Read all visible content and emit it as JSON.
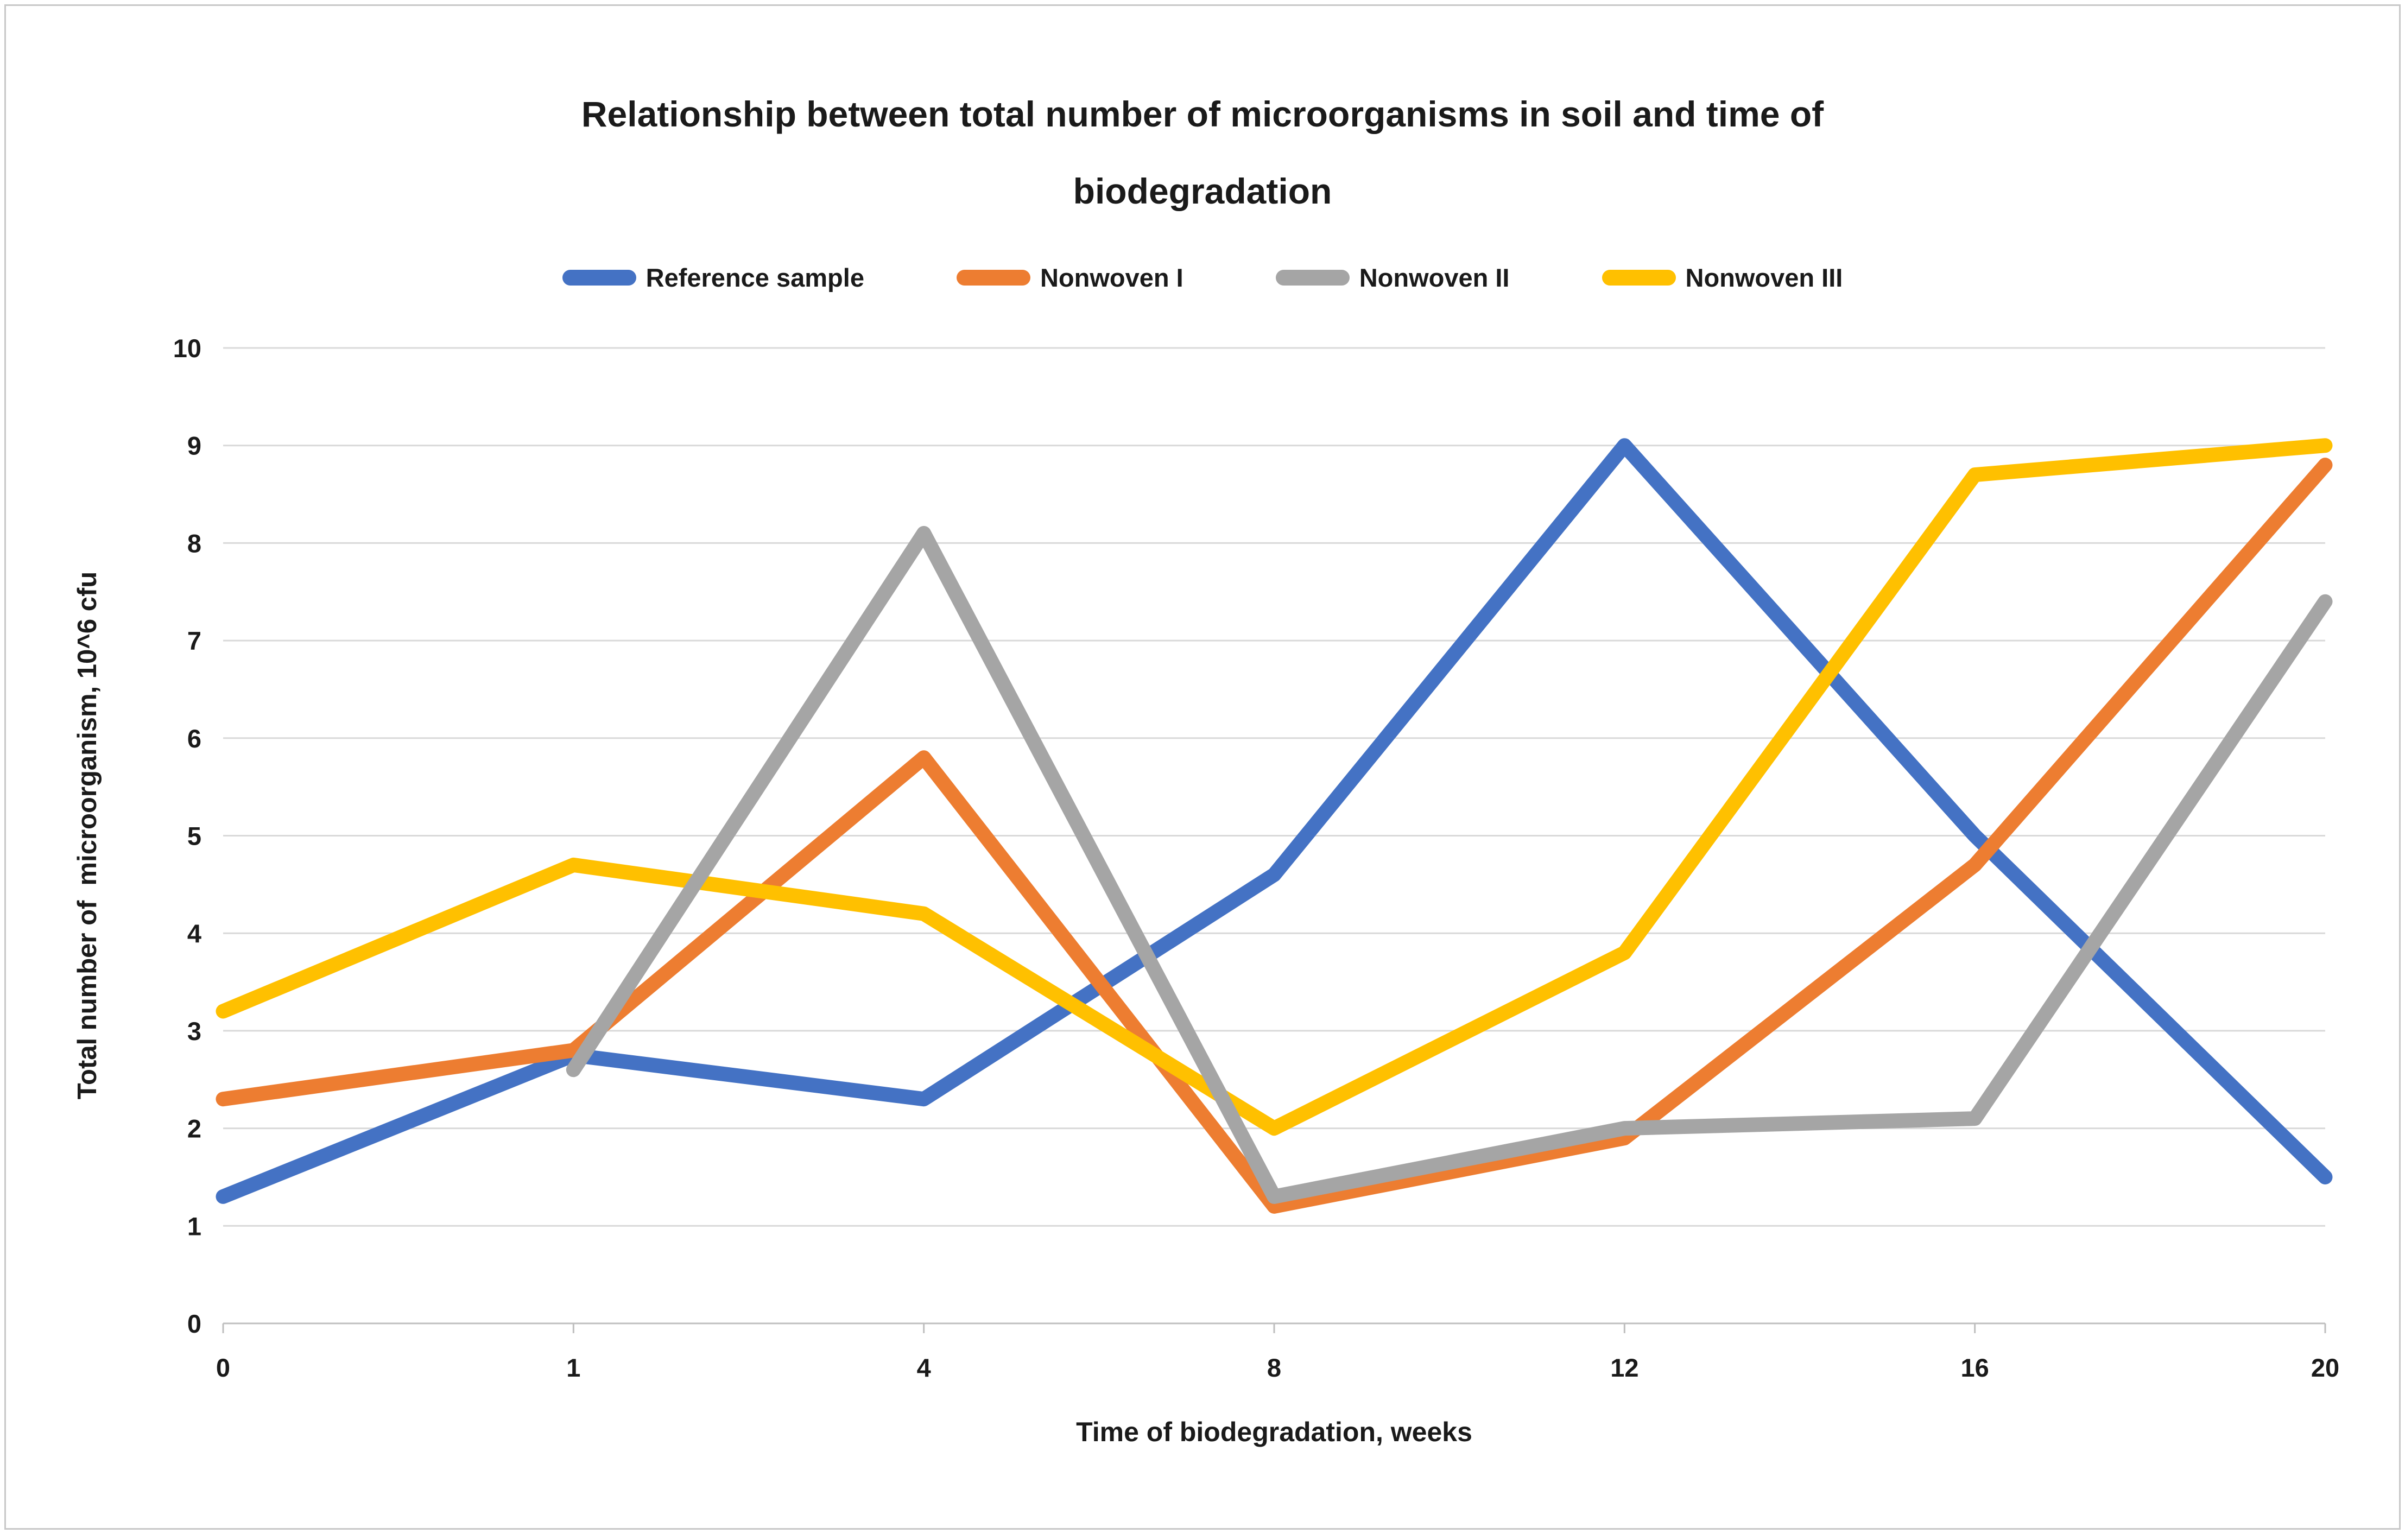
{
  "chart_data": {
    "type": "line",
    "title": "Relationship between total number of microorganisms in soil and time of biodegradation",
    "title_lines": [
      "Relationship between total number of microorganisms in soil and time of",
      "biodegradation"
    ],
    "xlabel": "Time of biodegradation, weeks",
    "ylabel": "Total number of  microorganism, 10^6 cfu",
    "categories": [
      0,
      1,
      4,
      8,
      12,
      16,
      20
    ],
    "yticks": [
      0,
      1,
      2,
      3,
      4,
      5,
      6,
      7,
      8,
      9,
      10
    ],
    "ylim": [
      0,
      10
    ],
    "grid": "horizontal",
    "legend_position": "top",
    "series": [
      {
        "name": "Reference sample",
        "color": "#4472C4",
        "values": [
          1.3,
          2.75,
          2.3,
          4.6,
          9.0,
          5.0,
          1.5
        ]
      },
      {
        "name": "Nonwoven I",
        "color": "#ED7D31",
        "values": [
          2.3,
          2.8,
          5.8,
          1.2,
          1.9,
          4.7,
          8.8
        ]
      },
      {
        "name": "Nonwoven II",
        "color": "#A5A5A5",
        "values": [
          null,
          2.6,
          8.1,
          1.3,
          2.0,
          2.1,
          7.4
        ]
      },
      {
        "name": "Nonwoven III",
        "color": "#FFC000",
        "values": [
          3.2,
          4.7,
          4.2,
          2.0,
          3.8,
          8.7,
          9.0
        ]
      }
    ],
    "draw_order": [
      0,
      1,
      3,
      2
    ],
    "line_width": 27,
    "colors": {
      "gridline": "#D9D9D9",
      "axis": "#BFBFBF",
      "text": "#1A1A1A",
      "background": "#FFFFFF",
      "frame_border": "#C8C8C8"
    }
  }
}
